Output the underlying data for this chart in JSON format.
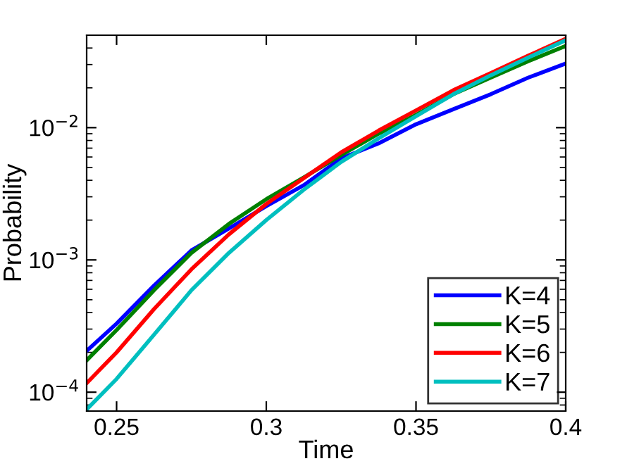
{
  "chart_data": {
    "type": "line",
    "xlabel": "Time",
    "ylabel": "Probability",
    "log": "y",
    "grid": false,
    "legend": "bottom right",
    "marker": "none",
    "line_style": "solid",
    "x": [
      0.24,
      0.25,
      0.2625,
      0.275,
      0.2875,
      0.3,
      0.3125,
      0.325,
      0.3375,
      0.35,
      0.3625,
      0.375,
      0.3875,
      0.4
    ],
    "xlim": [
      0.24,
      0.4
    ],
    "xticks": [
      0.25,
      0.3,
      0.35,
      0.4
    ],
    "ylim": [
      7.2e-05,
      0.05
    ],
    "yticks": [
      {
        "value": 0.0001,
        "label": "10$^{−4}$"
      },
      {
        "value": 0.001,
        "label": "10$^{−3}$"
      },
      {
        "value": 0.01,
        "label": "10$^{−2}$"
      }
    ],
    "series": [
      {
        "name": "K=4",
        "color": "#0000ff",
        "values": [
          0.000205,
          0.00033,
          0.00064,
          0.00118,
          0.00173,
          0.00255,
          0.00367,
          0.00585,
          0.0076,
          0.0106,
          0.0138,
          0.0179,
          0.0239,
          0.0305
        ]
      },
      {
        "name": "K=5",
        "color": "#008000",
        "values": [
          0.000174,
          0.000295,
          0.00059,
          0.00113,
          0.00187,
          0.00288,
          0.0042,
          0.0062,
          0.009,
          0.0125,
          0.0179,
          0.0239,
          0.0318,
          0.0415
        ]
      },
      {
        "name": "K=6",
        "color": "#ff0000",
        "values": [
          0.000117,
          0.0002,
          0.000425,
          0.00085,
          0.00156,
          0.00265,
          0.00415,
          0.0065,
          0.0095,
          0.0135,
          0.0192,
          0.0259,
          0.035,
          0.047
        ]
      },
      {
        "name": "K=7",
        "color": "#00bfbf",
        "values": [
          7.4e-05,
          0.000126,
          0.000272,
          0.00059,
          0.00113,
          0.002,
          0.00339,
          0.0055,
          0.0083,
          0.0122,
          0.0179,
          0.0249,
          0.0339,
          0.0458
        ]
      }
    ]
  }
}
